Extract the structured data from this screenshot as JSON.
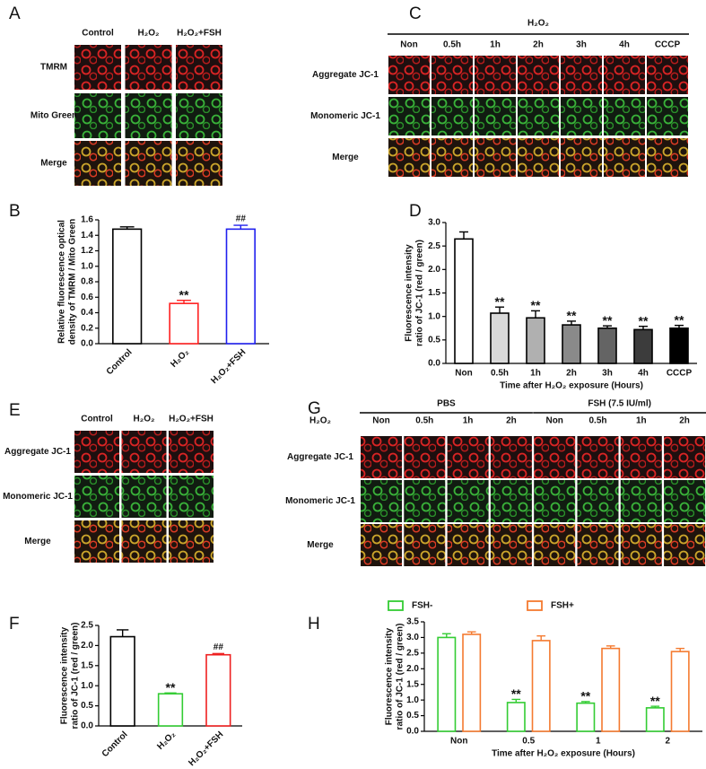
{
  "image_panels": [
    {
      "panel": "A",
      "columns": [
        "Control",
        "H₂O₂",
        "H₂O₂+FSH"
      ],
      "rows": [
        "TMRM",
        "Mito Green",
        "Merge"
      ]
    },
    {
      "panel": "C",
      "group_labels": [
        "H₂O₂"
      ],
      "columns": [
        "Non",
        "0.5h",
        "1h",
        "2h",
        "3h",
        "4h",
        "CCCP"
      ],
      "rows": [
        "Aggregate JC-1",
        "Monomeric JC-1",
        "Merge"
      ]
    },
    {
      "panel": "E",
      "columns": [
        "Control",
        "H₂O₂",
        "H₂O₂+FSH"
      ],
      "rows": [
        "Aggregate JC-1",
        "Monomeric JC-1",
        "Merge"
      ]
    },
    {
      "panel": "G",
      "group_labels": [
        "PBS",
        "FSH (7.5 IU/ml)"
      ],
      "column_header": "H₂O₂",
      "columns": [
        "Non",
        "0.5h",
        "1h",
        "2h",
        "Non",
        "0.5h",
        "1h",
        "2h"
      ],
      "rows": [
        "Aggregate JC-1",
        "Monomeric JC-1",
        "Merge"
      ]
    }
  ],
  "chart_data": [
    {
      "type": "bar",
      "panel": "B",
      "ylabel": [
        "Relative fluorescence optical",
        "density of TMRM / Mito Green"
      ],
      "categories": [
        "Control",
        "H₂O₂",
        "H₂O₂+FSH"
      ],
      "values": [
        1.48,
        0.52,
        1.48
      ],
      "errors": [
        0.03,
        0.04,
        0.05
      ],
      "significance": [
        null,
        "**",
        "##"
      ],
      "fill": "#ffffff",
      "edgecolors": [
        "#000000",
        "#ff2020",
        "#2020ee"
      ],
      "ylim": [
        0,
        1.6
      ],
      "yticks": [
        {
          "value": 0,
          "label": "0.0"
        },
        0.2,
        0.4,
        0.6,
        0.8,
        {
          "value": 1,
          "label": "1.0"
        },
        1.2,
        1.4,
        1.6
      ]
    },
    {
      "type": "bar",
      "panel": "D",
      "ylabel": [
        "Fluorescence intensity",
        "ratio of JC-1 (red / green)"
      ],
      "xlabel": "Time after H₂O₂ exposure (Hours)",
      "categories": [
        "Non",
        "0.5h",
        "1h",
        "2h",
        "3h",
        "4h",
        "CCCP"
      ],
      "values": [
        2.65,
        1.07,
        0.97,
        0.82,
        0.75,
        0.72,
        0.75
      ],
      "errors": [
        0.15,
        0.13,
        0.15,
        0.08,
        0.05,
        0.07,
        0.06
      ],
      "significance": [
        null,
        "**",
        "**",
        "**",
        "**",
        "**",
        "**"
      ],
      "colors": [
        "#ffffff",
        "#d9d9d9",
        "#b0b0b0",
        "#8a8a8a",
        "#646464",
        "#3c3c3c",
        "#000000"
      ],
      "edgecolor": "#000000",
      "ylim": [
        0,
        3
      ],
      "yticks": [
        {
          "value": 0,
          "label": "0.0"
        },
        0.5,
        {
          "value": 1,
          "label": "1.0"
        },
        1.5,
        {
          "value": 2,
          "label": "2.0"
        },
        2.5,
        {
          "value": 3,
          "label": "3.0"
        }
      ]
    },
    {
      "type": "bar",
      "panel": "F",
      "ylabel": [
        "Fluorescence intensity",
        "ratio of JC-1 (red / green)"
      ],
      "categories": [
        "Control",
        "H₂O₂",
        "H₂O₂+FSH"
      ],
      "values": [
        2.22,
        0.8,
        1.77
      ],
      "errors": [
        0.17,
        0.02,
        0.03
      ],
      "significance": [
        null,
        "**",
        "##"
      ],
      "fill": "#ffffff",
      "edgecolors": [
        "#000000",
        "#33cc33",
        "#ee2020"
      ],
      "ylim": [
        0,
        2.5
      ],
      "yticks": [
        {
          "value": 0,
          "label": "0.0"
        },
        0.5,
        {
          "value": 1,
          "label": "1.0"
        },
        1.5,
        {
          "value": 2,
          "label": "2.0"
        },
        2.5
      ]
    },
    {
      "type": "bar",
      "panel": "H",
      "ylabel": [
        "Fluorescence intensity",
        "ratio of JC-1 (red / green)"
      ],
      "xlabel": "Time after H₂O₂ exposure (Hours)",
      "categories": [
        "Non",
        "0.5",
        "1",
        "2"
      ],
      "fill": "#ffffff",
      "series": [
        {
          "name": "FSH-",
          "color": "#33cc33",
          "values": [
            3.0,
            0.92,
            0.9,
            0.75
          ],
          "errors": [
            0.12,
            0.1,
            0.05,
            0.05
          ],
          "significance": [
            null,
            "**",
            "**",
            "**"
          ]
        },
        {
          "name": "FSH+",
          "color": "#f47a30",
          "values": [
            3.1,
            2.9,
            2.65,
            2.55
          ],
          "errors": [
            0.08,
            0.15,
            0.08,
            0.1
          ]
        }
      ],
      "ylim": [
        0,
        3.5
      ],
      "yticks": [
        {
          "value": 0,
          "label": "0.0"
        },
        0.5,
        {
          "value": 1,
          "label": "1.0"
        },
        1.5,
        {
          "value": 2,
          "label": "2.0"
        },
        2.5,
        {
          "value": 3,
          "label": "3.0"
        },
        3.5
      ]
    }
  ]
}
